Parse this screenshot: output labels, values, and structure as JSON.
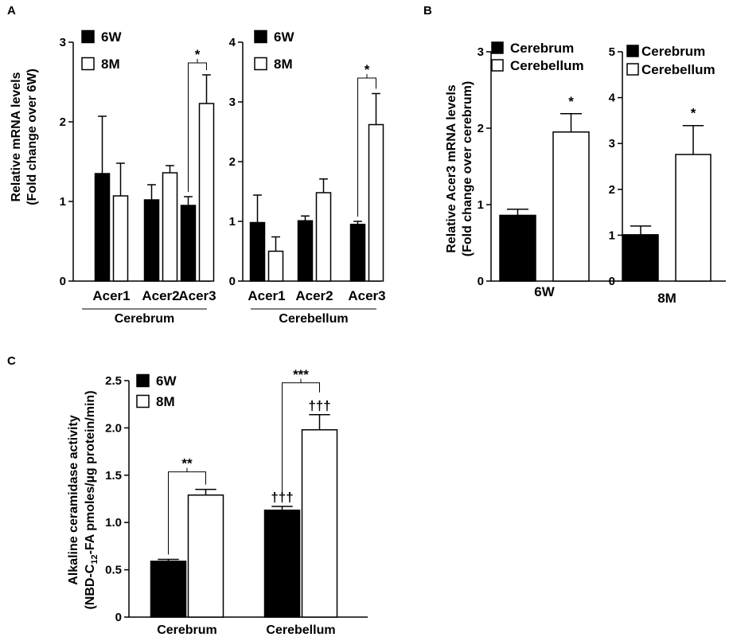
{
  "colors": {
    "filled": "#000000",
    "open": "#ffffff",
    "stroke": "#000000"
  },
  "panel_labels": {
    "a": "A",
    "b": "B",
    "c": "C"
  },
  "chart_data": [
    {
      "id": "A1",
      "type": "bar",
      "panel": "A",
      "categories": [
        "Acer1",
        "Acer2",
        "Acer3"
      ],
      "group_label": "Cerebrum",
      "ylabel": [
        "Relative mRNA levels",
        "(Fold change over 6W)"
      ],
      "ylim": [
        0,
        3
      ],
      "yticks": [
        "0",
        "1",
        "2",
        "3"
      ],
      "series": [
        {
          "name": "6W",
          "fill": "#000000",
          "values": [
            1.35,
            1.02,
            0.95
          ],
          "errors": [
            0.72,
            0.19,
            0.11
          ]
        },
        {
          "name": "8M",
          "fill": "#ffffff",
          "values": [
            1.07,
            1.36,
            2.23
          ],
          "errors": [
            0.41,
            0.09,
            0.36
          ]
        }
      ],
      "legend": {
        "position": "top-left",
        "items": [
          "6W",
          "8M"
        ]
      },
      "significance": [
        {
          "category": "Acer3",
          "label": "*"
        }
      ]
    },
    {
      "id": "A2",
      "type": "bar",
      "panel": "A",
      "categories": [
        "Acer1",
        "Acer2",
        "Acer3"
      ],
      "group_label": "Cerebellum",
      "ylim": [
        0,
        4
      ],
      "yticks": [
        "0",
        "1",
        "2",
        "3",
        "4"
      ],
      "series": [
        {
          "name": "6W",
          "fill": "#000000",
          "values": [
            0.98,
            1.01,
            0.95
          ],
          "errors": [
            0.46,
            0.08,
            0.05
          ]
        },
        {
          "name": "8M",
          "fill": "#ffffff",
          "values": [
            0.5,
            1.48,
            2.62
          ],
          "errors": [
            0.24,
            0.23,
            0.52
          ]
        }
      ],
      "legend": {
        "position": "top-left",
        "items": [
          "6W",
          "8M"
        ]
      },
      "significance": [
        {
          "category": "Acer3",
          "label": "*"
        }
      ]
    },
    {
      "id": "B1",
      "type": "bar",
      "panel": "B",
      "categories": [
        "6W"
      ],
      "ylabel": [
        "Relative Acer3 mRNA levels",
        "(Fold change over cerebrum)"
      ],
      "ylim": [
        0,
        3
      ],
      "yticks": [
        "0",
        "1",
        "2",
        "3"
      ],
      "series": [
        {
          "name": "Cerebrum",
          "fill": "#000000",
          "values": [
            0.86
          ],
          "errors": [
            0.08
          ]
        },
        {
          "name": "Cerebellum",
          "fill": "#ffffff",
          "values": [
            1.95
          ],
          "errors": [
            0.24
          ]
        }
      ],
      "legend": {
        "position": "top",
        "items": [
          "Cerebrum",
          "Cerebellum"
        ]
      },
      "significance": [
        {
          "series": "Cerebellum",
          "label": "*"
        }
      ]
    },
    {
      "id": "B2",
      "type": "bar",
      "panel": "B",
      "categories": [
        "8M"
      ],
      "ylim": [
        0,
        5
      ],
      "yticks": [
        "0",
        "1",
        "2",
        "3",
        "4",
        "5"
      ],
      "series": [
        {
          "name": "Cerebrum",
          "fill": "#000000",
          "values": [
            1.01
          ],
          "errors": [
            0.19
          ]
        },
        {
          "name": "Cerebellum",
          "fill": "#ffffff",
          "values": [
            2.76
          ],
          "errors": [
            0.63
          ]
        }
      ],
      "legend": {
        "position": "top",
        "items": [
          "Cerebrum",
          "Cerebellum"
        ]
      },
      "significance": [
        {
          "series": "Cerebellum",
          "label": "*"
        }
      ]
    },
    {
      "id": "C1",
      "type": "bar",
      "panel": "C",
      "categories": [
        "Cerebrum",
        "Cerebellum"
      ],
      "ylabel": [
        "Alkaline ceramidase activity",
        "(NBD-C",
        "12",
        "-FA pmoles/µg protein/min)"
      ],
      "ylim": [
        0,
        2.5
      ],
      "yticks": [
        "0",
        "0.5",
        "1.0",
        "1.5",
        "2.0",
        "2.5"
      ],
      "series": [
        {
          "name": "6W",
          "fill": "#000000",
          "values": [
            0.59,
            1.13
          ],
          "errors": [
            0.02,
            0.04
          ],
          "marks": [
            "",
            "†††"
          ]
        },
        {
          "name": "8M",
          "fill": "#ffffff",
          "values": [
            1.29,
            1.98
          ],
          "errors": [
            0.06,
            0.16
          ],
          "marks": [
            "",
            "†††"
          ]
        }
      ],
      "legend": {
        "position": "top-left",
        "items": [
          "6W",
          "8M"
        ]
      },
      "significance": [
        {
          "category": "Cerebrum",
          "label": "**"
        },
        {
          "category": "Cerebellum",
          "label": "***"
        }
      ]
    }
  ]
}
